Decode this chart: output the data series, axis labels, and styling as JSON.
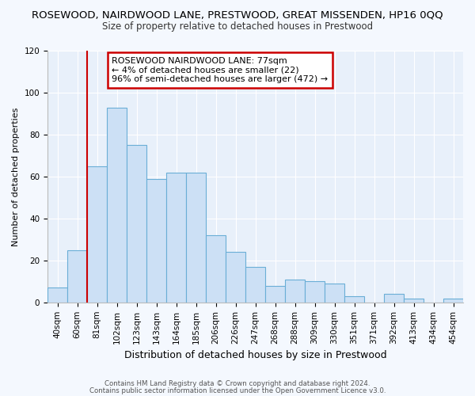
{
  "title": "ROSEWOOD, NAIRDWOOD LANE, PRESTWOOD, GREAT MISSENDEN, HP16 0QQ",
  "subtitle": "Size of property relative to detached houses in Prestwood",
  "xlabel": "Distribution of detached houses by size in Prestwood",
  "ylabel": "Number of detached properties",
  "bar_labels": [
    "40sqm",
    "60sqm",
    "81sqm",
    "102sqm",
    "123sqm",
    "143sqm",
    "164sqm",
    "185sqm",
    "206sqm",
    "226sqm",
    "247sqm",
    "268sqm",
    "288sqm",
    "309sqm",
    "330sqm",
    "351sqm",
    "371sqm",
    "392sqm",
    "413sqm",
    "434sqm",
    "454sqm"
  ],
  "bar_values": [
    7,
    25,
    65,
    93,
    75,
    59,
    62,
    62,
    32,
    24,
    17,
    8,
    11,
    10,
    9,
    3,
    0,
    4,
    2,
    0,
    2
  ],
  "bar_color": "#cce0f5",
  "bar_edge_color": "#6aaed6",
  "vline_color": "#cc0000",
  "annotation_line1": "ROSEWOOD NAIRDWOOD LANE: 77sqm",
  "annotation_line2": "← 4% of detached houses are smaller (22)",
  "annotation_line3": "96% of semi-detached houses are larger (472) →",
  "annotation_box_color": "#cc0000",
  "ylim": [
    0,
    120
  ],
  "yticks": [
    0,
    20,
    40,
    60,
    80,
    100,
    120
  ],
  "footer1": "Contains HM Land Registry data © Crown copyright and database right 2024.",
  "footer2": "Contains public sector information licensed under the Open Government Licence v3.0.",
  "fig_bg_color": "#f4f8fe",
  "plot_bg_color": "#e8f0fa",
  "grid_color": "#ffffff",
  "title_fontsize": 9.5,
  "subtitle_fontsize": 8.5,
  "ylabel_fontsize": 8,
  "xlabel_fontsize": 9,
  "tick_fontsize": 7.5,
  "annot_fontsize": 8
}
